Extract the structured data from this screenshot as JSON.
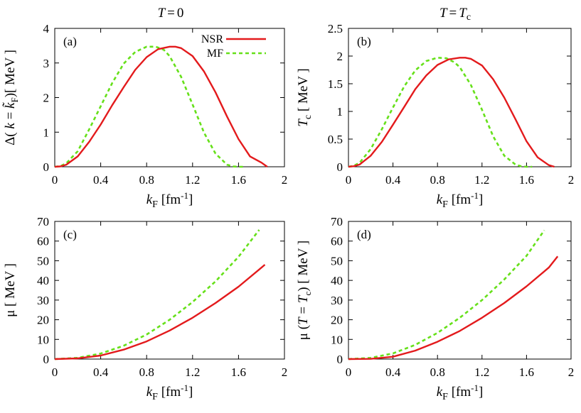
{
  "colors": {
    "nsr": "#e31a1c",
    "mf": "#66e01a",
    "axis": "#000000"
  },
  "column_titles": {
    "left": "T = 0",
    "right": "T = Tc"
  },
  "legend": {
    "nsr": "NSR",
    "mf": "MF"
  },
  "chart_data": [
    {
      "id": "a",
      "type": "line",
      "tag": "(a)",
      "xlabel": "kF [fm-1]",
      "ylabel": "Δ(k = k̃F) [ MeV ]",
      "xlim": [
        0,
        2
      ],
      "ylim": [
        0,
        4
      ],
      "xticks": [
        "0",
        "0.4",
        "0.8",
        "1.2",
        "1.6",
        "2"
      ],
      "yticks": [
        "0",
        "1",
        "2",
        "3",
        "4"
      ],
      "series": [
        {
          "name": "NSR",
          "style": "solid",
          "x": [
            0.0,
            0.05,
            0.1,
            0.2,
            0.3,
            0.4,
            0.5,
            0.6,
            0.7,
            0.8,
            0.9,
            1.0,
            1.05,
            1.1,
            1.2,
            1.3,
            1.4,
            1.5,
            1.6,
            1.7,
            1.8,
            1.85
          ],
          "y": [
            0.0,
            0.01,
            0.06,
            0.3,
            0.72,
            1.22,
            1.78,
            2.3,
            2.8,
            3.17,
            3.4,
            3.47,
            3.47,
            3.43,
            3.2,
            2.75,
            2.15,
            1.45,
            0.8,
            0.3,
            0.12,
            0.0
          ]
        },
        {
          "name": "MF",
          "style": "dashed",
          "x": [
            0.0,
            0.05,
            0.1,
            0.2,
            0.3,
            0.4,
            0.5,
            0.6,
            0.7,
            0.8,
            0.88,
            0.95,
            1.0,
            1.1,
            1.2,
            1.3,
            1.4,
            1.5,
            1.55,
            1.6,
            1.65
          ],
          "y": [
            0.0,
            0.02,
            0.1,
            0.45,
            1.08,
            1.75,
            2.42,
            2.98,
            3.32,
            3.47,
            3.47,
            3.38,
            3.2,
            2.6,
            1.8,
            0.98,
            0.38,
            0.06,
            0.01,
            0.0,
            0.0
          ]
        }
      ]
    },
    {
      "id": "b",
      "type": "line",
      "tag": "(b)",
      "xlabel": "kF [fm-1]",
      "ylabel": "Tc [ MeV ]",
      "xlim": [
        0,
        2
      ],
      "ylim": [
        0,
        2.5
      ],
      "xticks": [
        "0",
        "0.4",
        "0.8",
        "1.2",
        "1.6",
        "2"
      ],
      "yticks": [
        "0",
        "0.5",
        "1",
        "1.5",
        "2",
        "2.5"
      ],
      "series": [
        {
          "name": "NSR",
          "style": "solid",
          "x": [
            0.0,
            0.05,
            0.1,
            0.2,
            0.3,
            0.4,
            0.5,
            0.6,
            0.7,
            0.8,
            0.9,
            1.0,
            1.05,
            1.1,
            1.2,
            1.3,
            1.4,
            1.5,
            1.6,
            1.7,
            1.8,
            1.85
          ],
          "y": [
            0.0,
            0.01,
            0.04,
            0.2,
            0.45,
            0.76,
            1.08,
            1.4,
            1.65,
            1.84,
            1.94,
            1.97,
            1.97,
            1.95,
            1.83,
            1.58,
            1.25,
            0.86,
            0.46,
            0.17,
            0.03,
            0.0
          ]
        },
        {
          "name": "MF",
          "style": "dashed",
          "x": [
            0.0,
            0.05,
            0.1,
            0.2,
            0.3,
            0.4,
            0.5,
            0.6,
            0.7,
            0.8,
            0.88,
            0.95,
            1.0,
            1.1,
            1.2,
            1.3,
            1.4,
            1.5,
            1.55,
            1.6,
            1.65
          ],
          "y": [
            0.0,
            0.02,
            0.07,
            0.32,
            0.68,
            1.07,
            1.45,
            1.74,
            1.91,
            1.97,
            1.96,
            1.89,
            1.8,
            1.48,
            1.03,
            0.55,
            0.2,
            0.04,
            0.01,
            0.0,
            0.0
          ]
        }
      ]
    },
    {
      "id": "c",
      "type": "line",
      "tag": "(c)",
      "xlabel": "kF [fm-1]",
      "ylabel": "μ [ MeV ]",
      "xlim": [
        0,
        2
      ],
      "ylim": [
        0,
        70
      ],
      "xticks": [
        "0",
        "0.4",
        "0.8",
        "1.2",
        "1.6",
        "2"
      ],
      "yticks": [
        "0",
        "10",
        "20",
        "30",
        "40",
        "50",
        "60",
        "70"
      ],
      "series": [
        {
          "name": "NSR",
          "style": "solid",
          "x": [
            0.0,
            0.2,
            0.4,
            0.6,
            0.8,
            1.0,
            1.2,
            1.4,
            1.6,
            1.8,
            1.83
          ],
          "y": [
            0.0,
            0.35,
            1.8,
            4.8,
            9.0,
            14.5,
            21.0,
            28.5,
            36.8,
            46.5,
            48.0
          ]
        },
        {
          "name": "MF",
          "style": "dashed",
          "x": [
            0.0,
            0.2,
            0.4,
            0.6,
            0.8,
            1.0,
            1.2,
            1.4,
            1.6,
            1.78
          ],
          "y": [
            0.0,
            0.6,
            2.8,
            6.8,
            12.5,
            20.0,
            29.0,
            39.5,
            52.0,
            65.7
          ]
        }
      ]
    },
    {
      "id": "d",
      "type": "line",
      "tag": "(d)",
      "xlabel": "kF [fm-1]",
      "ylabel": "μ (T = Tc) [ MeV ]",
      "xlim": [
        0,
        2
      ],
      "ylim": [
        0,
        70
      ],
      "xticks": [
        "0",
        "0.4",
        "0.8",
        "1.2",
        "1.6",
        "2"
      ],
      "yticks": [
        "0",
        "10",
        "20",
        "30",
        "40",
        "50",
        "60",
        "70"
      ],
      "series": [
        {
          "name": "NSR",
          "style": "solid",
          "x": [
            0.0,
            0.2,
            0.4,
            0.6,
            0.8,
            1.0,
            1.2,
            1.4,
            1.6,
            1.8,
            1.88
          ],
          "y": [
            0.0,
            0.1,
            1.2,
            4.3,
            8.8,
            14.3,
            21.0,
            28.5,
            37.0,
            46.5,
            52.2
          ]
        },
        {
          "name": "MF",
          "style": "dashed",
          "x": [
            0.0,
            0.2,
            0.4,
            0.6,
            0.8,
            1.0,
            1.2,
            1.4,
            1.6,
            1.76
          ],
          "y": [
            0.0,
            0.6,
            2.9,
            7.2,
            13.3,
            21.0,
            30.0,
            40.5,
            52.5,
            65.5
          ]
        }
      ]
    }
  ]
}
